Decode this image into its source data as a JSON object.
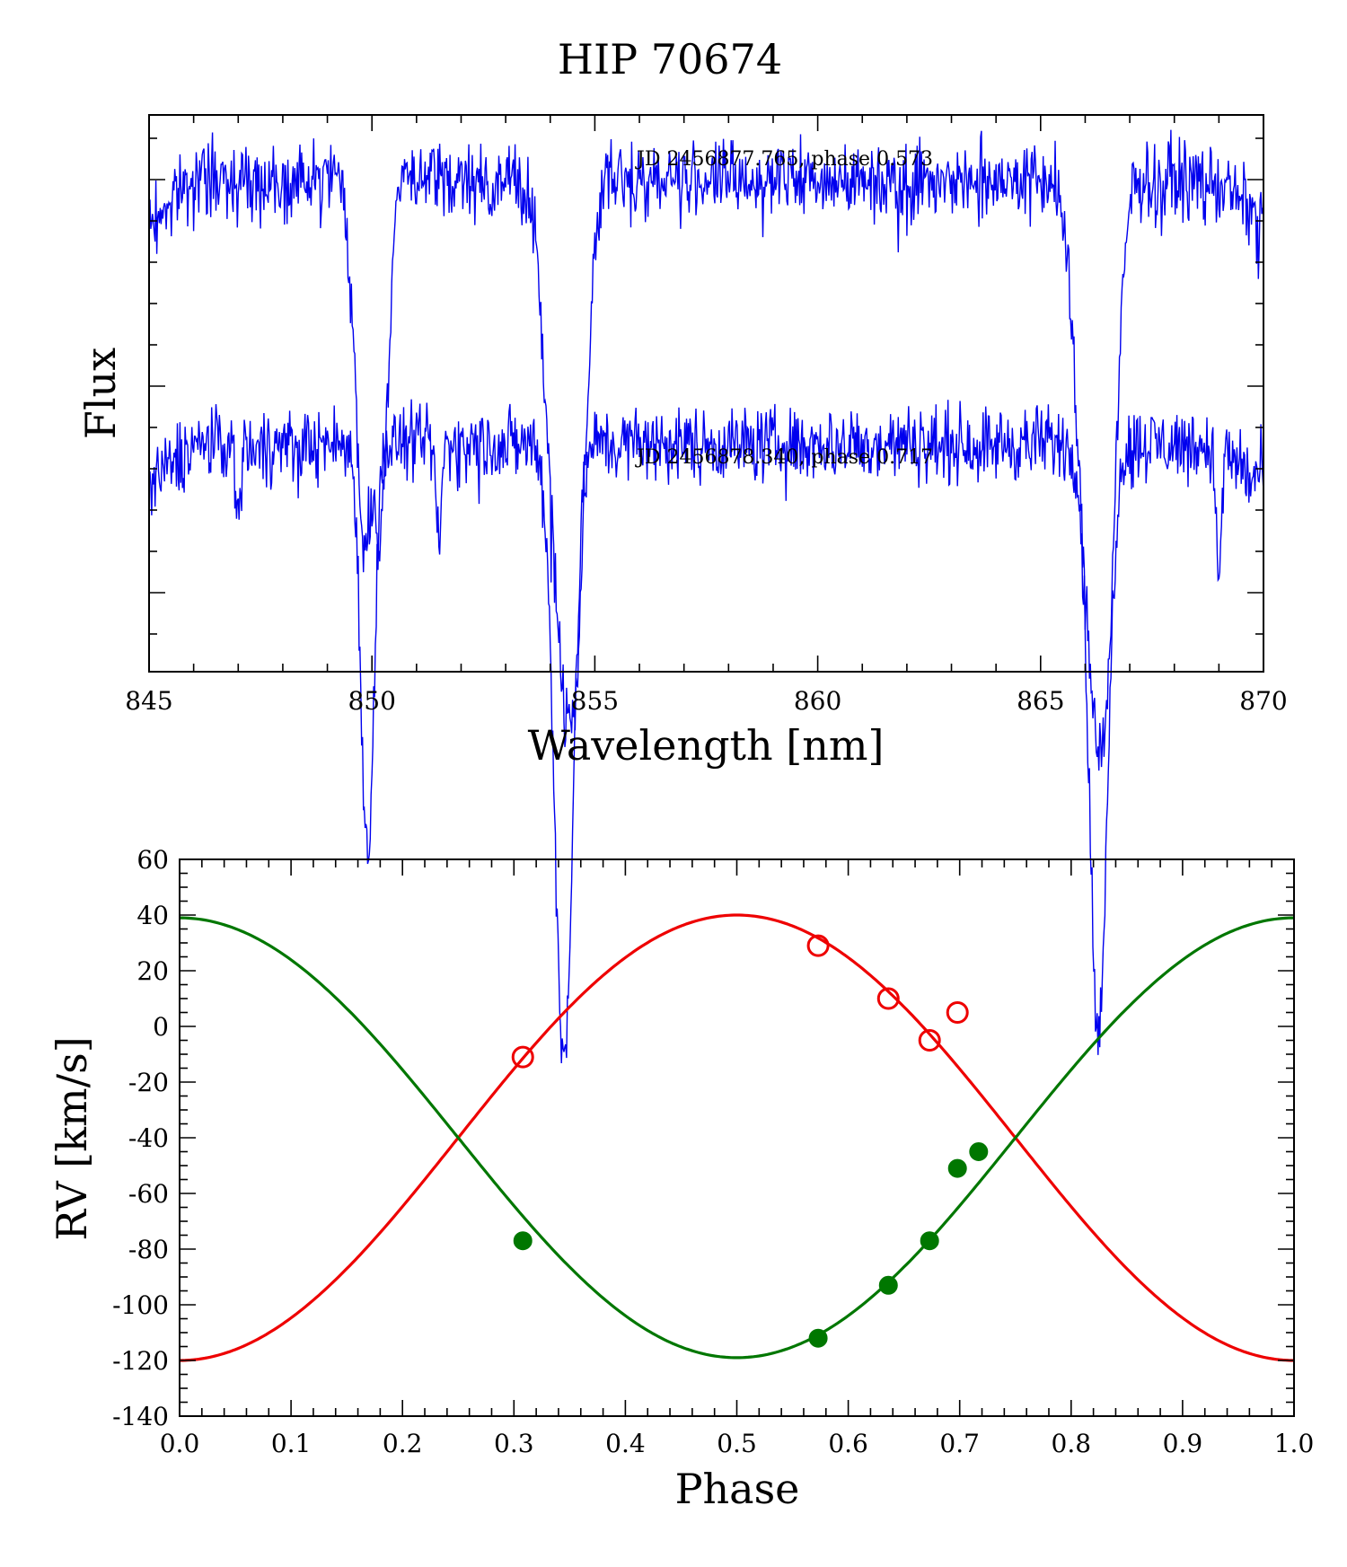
{
  "figure_title": "HIP 70674",
  "chart_data": [
    {
      "type": "line",
      "title": "",
      "xlabel": "Wavelength [nm]",
      "ylabel": "Flux",
      "xlim": [
        845,
        870
      ],
      "xticks": [
        "845",
        "850",
        "855",
        "860",
        "865",
        "870"
      ],
      "y_tick_labels_shown": false,
      "grid": false,
      "series_color": "#0000ee",
      "annotations": [
        "JD 2456877.765, phase 0.573",
        "JD 2456878.340, phase 0.717"
      ],
      "series": [
        {
          "continuum_level": 1.0,
          "absorption_lines": [
            {
              "center_nm": 849.8,
              "width_nm": 0.18,
              "depth": 0.42
            },
            {
              "center_nm": 850.2,
              "width_nm": 0.16,
              "depth": 0.38
            },
            {
              "center_nm": 854.2,
              "width_nm": 0.28,
              "depth": 0.48
            },
            {
              "center_nm": 854.6,
              "width_nm": 0.22,
              "depth": 0.42
            },
            {
              "center_nm": 866.1,
              "width_nm": 0.28,
              "depth": 0.5
            },
            {
              "center_nm": 866.5,
              "width_nm": 0.22,
              "depth": 0.44
            }
          ]
        },
        {
          "continuum_level": 0.68,
          "absorption_lines": [
            {
              "center_nm": 849.9,
              "width_nm": 0.14,
              "depth": 0.5
            },
            {
              "center_nm": 854.3,
              "width_nm": 0.2,
              "depth": 0.75
            },
            {
              "center_nm": 866.3,
              "width_nm": 0.2,
              "depth": 0.72
            },
            {
              "center_nm": 847.0,
              "width_nm": 0.05,
              "depth": 0.1
            },
            {
              "center_nm": 851.5,
              "width_nm": 0.06,
              "depth": 0.12
            },
            {
              "center_nm": 869.0,
              "width_nm": 0.06,
              "depth": 0.15
            }
          ]
        }
      ]
    },
    {
      "type": "scatter",
      "title": "",
      "xlabel": "Phase",
      "ylabel": "RV [km/s]",
      "xlim": [
        0.0,
        1.0
      ],
      "ylim": [
        -140,
        60
      ],
      "xticks": [
        "0.0",
        "0.1",
        "0.2",
        "0.3",
        "0.4",
        "0.5",
        "0.6",
        "0.7",
        "0.8",
        "0.9",
        "1.0"
      ],
      "yticks": [
        "60",
        "40",
        "20",
        "0",
        "-20",
        "-40",
        "-60",
        "-80",
        "-100",
        "-120",
        "-140"
      ],
      "grid": false,
      "series": [
        {
          "marker": "open-circle",
          "color": "#ee0000",
          "x": [
            0.308,
            0.573,
            0.636,
            0.673,
            0.698
          ],
          "y": [
            -11,
            29,
            10,
            -5,
            5
          ]
        },
        {
          "marker": "filled-circle",
          "color": "#007700",
          "x": [
            0.308,
            0.573,
            0.636,
            0.673,
            0.698,
            0.717
          ],
          "y": [
            -77,
            -112,
            -93,
            -77,
            -51,
            -45
          ]
        }
      ],
      "fit_curves": [
        {
          "color": "#ee0000",
          "gamma": -40,
          "K": 80,
          "phase_of_max": 0.5
        },
        {
          "color": "#007700",
          "gamma": -40,
          "K": 79,
          "phase_of_max": 0.0
        }
      ]
    }
  ]
}
